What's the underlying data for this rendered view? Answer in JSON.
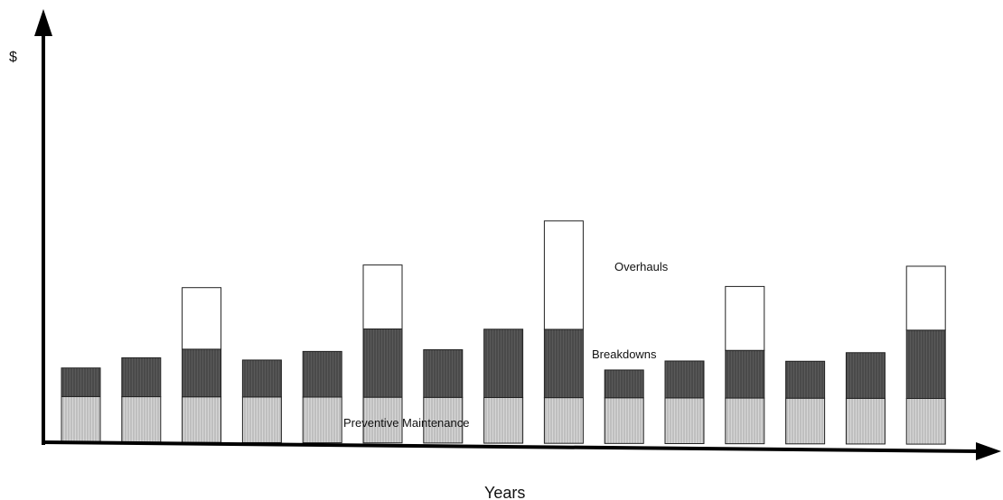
{
  "chart_data": {
    "type": "bar",
    "stacked": true,
    "title": "",
    "xlabel": "Years",
    "ylabel": "$",
    "x_tick_labels": false,
    "y_tick_labels": false,
    "grid": false,
    "legend": "inline annotations",
    "ylim": [
      0,
      100
    ],
    "categories": [
      "",
      "",
      "",
      "",
      "",
      "",
      "",
      "",
      "",
      "",
      "",
      "",
      "",
      "",
      ""
    ],
    "series": [
      {
        "name": "Preventive Maintenance",
        "color": "#c8c8c8",
        "values": [
          11.5,
          11.5,
          11.5,
          11.5,
          11.5,
          11.5,
          11.5,
          11.5,
          11.5,
          11.5,
          11.5,
          11.5,
          11.5,
          11.5,
          11.5
        ]
      },
      {
        "name": "Breakdowns",
        "color": "#555555",
        "values": [
          7.2,
          9.8,
          12.0,
          9.3,
          11.5,
          17.2,
          12.0,
          17.2,
          17.2,
          7.0,
          9.3,
          12.0,
          9.3,
          11.5,
          17.2
        ]
      },
      {
        "name": "Overhauls",
        "color": "#ffffff",
        "values": [
          0,
          0,
          15.5,
          0,
          0,
          16.1,
          0,
          0,
          27.3,
          0,
          0,
          16.1,
          0,
          0,
          16.1
        ]
      }
    ],
    "annotations": [
      {
        "text": "Overhauls",
        "series": 2
      },
      {
        "text": "Breakdowns",
        "series": 1
      },
      {
        "text": "Preventive Maintenance",
        "series": 0
      }
    ]
  }
}
